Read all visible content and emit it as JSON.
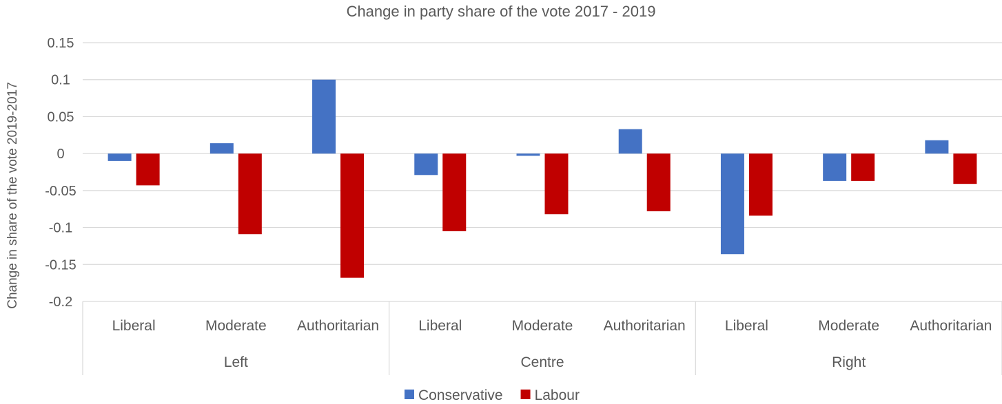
{
  "chart_data": {
    "type": "bar",
    "title": "Change in party share of the vote 2017 - 2019",
    "ylabel": "Change in share of the vote 2019-2017",
    "xlabel": "",
    "ylim": [
      -0.2,
      0.15
    ],
    "yticks": [
      0.15,
      0.1,
      0.05,
      0,
      -0.05,
      -0.1,
      -0.15,
      -0.2
    ],
    "ytick_labels": [
      "0.15",
      "0.1",
      "0.05",
      "0",
      "-0.05",
      "-0.1",
      "-0.15",
      "-0.2"
    ],
    "grid": true,
    "legend_position": "bottom",
    "groups": [
      "Left",
      "Centre",
      "Right"
    ],
    "categories": [
      "Liberal",
      "Moderate",
      "Authoritarian",
      "Liberal",
      "Moderate",
      "Authoritarian",
      "Liberal",
      "Moderate",
      "Authoritarian"
    ],
    "series": [
      {
        "name": "Conservative",
        "color": "#4472c4",
        "values": [
          -0.01,
          0.014,
          0.1,
          -0.029,
          -0.003,
          0.033,
          -0.136,
          -0.037,
          0.018
        ]
      },
      {
        "name": "Labour",
        "color": "#c00000",
        "values": [
          -0.043,
          -0.109,
          -0.168,
          -0.105,
          -0.082,
          -0.078,
          -0.084,
          -0.037,
          -0.041
        ]
      }
    ]
  }
}
